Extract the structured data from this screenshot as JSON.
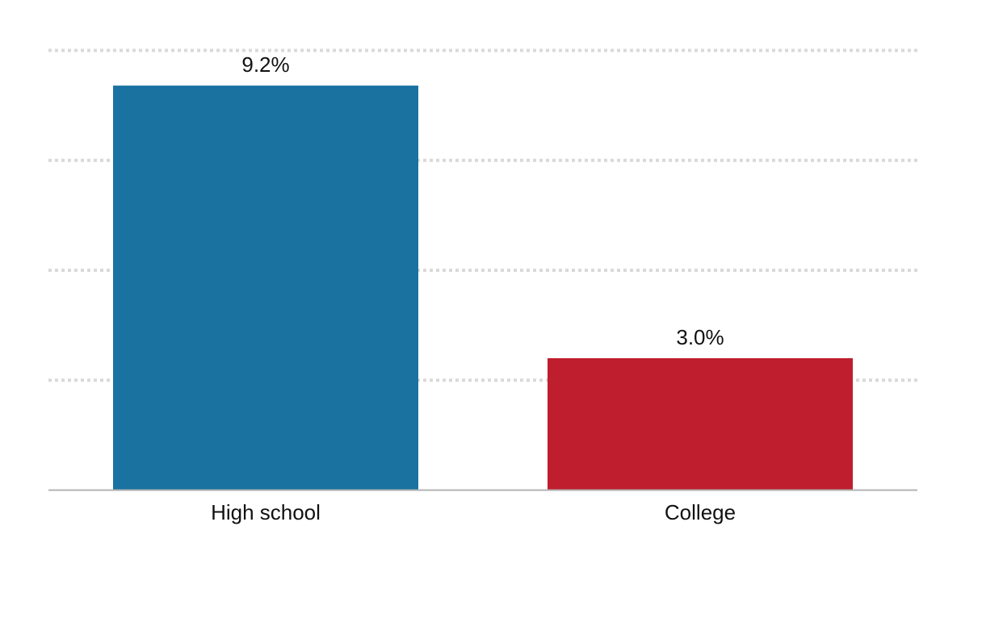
{
  "chart_data": {
    "type": "bar",
    "title": "",
    "xlabel": "",
    "ylabel": "",
    "categories": [
      "High school",
      "College"
    ],
    "values": [
      9.2,
      3.0
    ],
    "value_labels": [
      "9.2%",
      "3.0%"
    ],
    "colors": [
      "#1a72a1",
      "#be1e2d"
    ],
    "ylim": [
      0,
      10
    ],
    "gridline_values": [
      2.5,
      5,
      7.5,
      10
    ],
    "grid": true,
    "grid_style": "dotted",
    "legend": "none"
  },
  "colors": {
    "grid": "#d9d9d9",
    "baseline": "#b3b3b3",
    "text": "#111111"
  }
}
